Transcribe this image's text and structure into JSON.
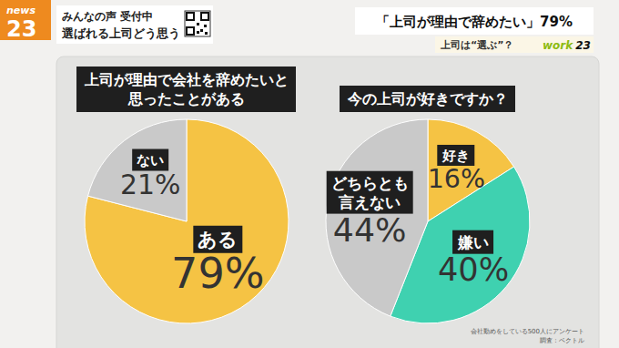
{
  "header": {
    "logo": [
      "news",
      "23"
    ],
    "lines": [
      "みんなの声 受付中",
      "選ばれる上司どう思う"
    ],
    "headline": "「上司が理由で辞めたい」79%",
    "subhead": "上司は“選ぶ”？",
    "corner_logo": [
      "work",
      "23"
    ]
  },
  "chart_data": [
    {
      "type": "pie",
      "title": "上司が理由で会社を辞めたいと思ったことがある",
      "categories": [
        "ある",
        "ない"
      ],
      "values": [
        79,
        21
      ],
      "value_labels": [
        "79%",
        "21%"
      ],
      "colors": [
        "#f5c344",
        "#c9c9c9"
      ],
      "data_labels": true
    },
    {
      "type": "pie",
      "title": "今の上司が好きですか？",
      "categories": [
        "好き",
        "嫌い",
        "どちらとも言えない"
      ],
      "values": [
        16,
        40,
        44
      ],
      "value_labels": [
        "16%",
        "40%",
        "44%"
      ],
      "colors": [
        "#f5c344",
        "#3fd1b0",
        "#c9c9c9"
      ],
      "data_labels": true
    }
  ],
  "footer": [
    "会社勤めをしている500人にアンケート",
    "調査：ベクトル"
  ]
}
